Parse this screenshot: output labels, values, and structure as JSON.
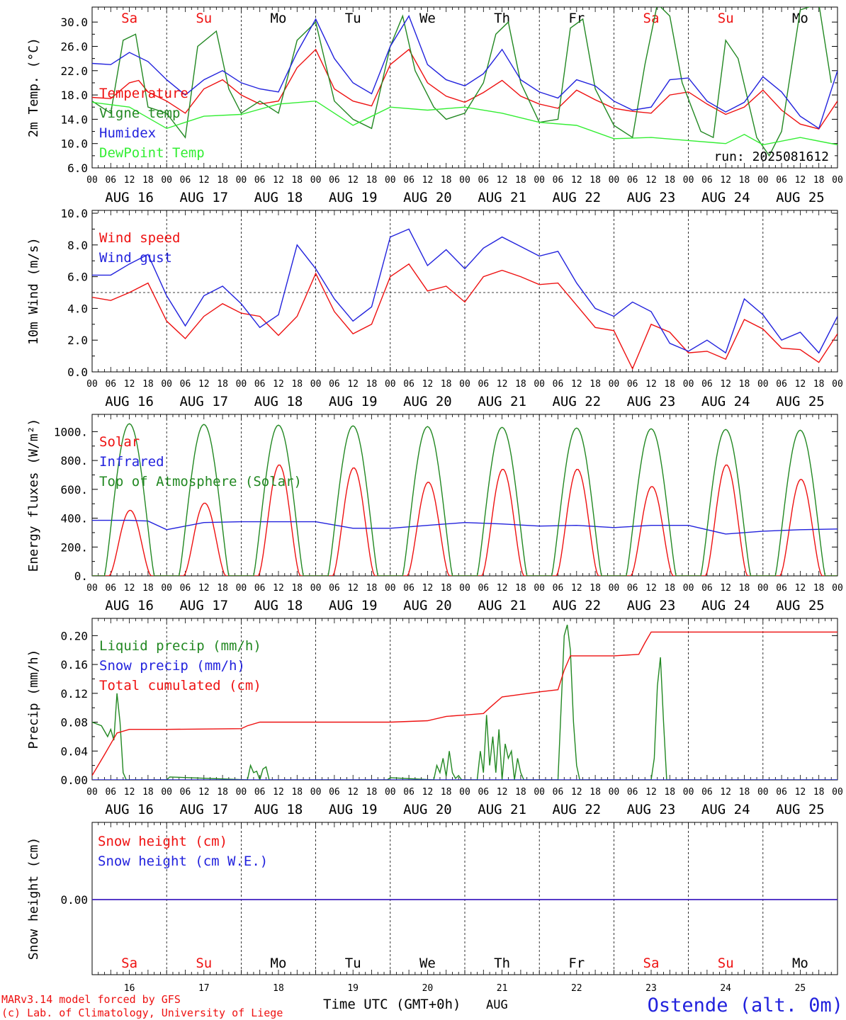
{
  "colors": {
    "red": "#ee1111",
    "green": "#228822",
    "blue": "#2222dd",
    "lightgreen": "#33ee33",
    "black": "#000000"
  },
  "x_axis": {
    "date_labels": [
      "AUG 16",
      "AUG 17",
      "AUG 18",
      "AUG 19",
      "AUG 20",
      "AUG 21",
      "AUG 22",
      "AUG 23",
      "AUG 24",
      "AUG 25"
    ],
    "hour_labels": [
      "00",
      "06",
      "12",
      "18"
    ],
    "bottom_day_numbers": [
      "16",
      "17",
      "18",
      "19",
      "20",
      "21",
      "22",
      "23",
      "24",
      "25"
    ],
    "xlabel": "Time UTC (GMT+0h)",
    "month": "AUG"
  },
  "weekdays": [
    {
      "label": "Sa",
      "weekend": true
    },
    {
      "label": "Su",
      "weekend": true
    },
    {
      "label": "Mo",
      "weekend": false
    },
    {
      "label": "Tu",
      "weekend": false
    },
    {
      "label": "We",
      "weekend": false
    },
    {
      "label": "Th",
      "weekend": false
    },
    {
      "label": "Fr",
      "weekend": false
    },
    {
      "label": "Sa",
      "weekend": true
    },
    {
      "label": "Su",
      "weekend": true
    },
    {
      "label": "Mo",
      "weekend": false
    }
  ],
  "footer": {
    "credit_line1": "MARv3.14 model forced by GFS",
    "credit_line2": "(c) Lab. of Climatology, University of Liege",
    "station": "Ostende (alt. 0m)"
  },
  "chart_data": [
    {
      "id": "temp",
      "type": "line",
      "ylabel": "2m Temp. (°C)",
      "ylim": [
        6.0,
        32.0
      ],
      "yticks": [
        "6.0",
        "10.0",
        "14.0",
        "18.0",
        "22.0",
        "26.0",
        "30.0"
      ],
      "annotation": "run: 2025081612",
      "show_weekdays": true,
      "x_unit": "hours since AUG 16 00 UTC",
      "series": [
        {
          "name": "Temperature",
          "color": "red",
          "x": [
            0,
            6,
            12,
            15,
            18,
            24,
            30,
            36,
            42,
            48,
            54,
            60,
            66,
            72,
            78,
            84,
            90,
            96,
            102,
            108,
            114,
            120,
            126,
            132,
            138,
            144,
            150,
            156,
            162,
            168,
            174,
            180,
            186,
            192,
            198,
            204,
            210,
            216,
            222,
            228,
            234,
            240
          ],
          "y": [
            17.6,
            17.4,
            20,
            20.4,
            18.5,
            17,
            15,
            19,
            20.5,
            18,
            16.5,
            17,
            22.5,
            25.5,
            19,
            17,
            16.2,
            23,
            25.5,
            20,
            17.8,
            16.8,
            18.4,
            20.4,
            17.8,
            16.5,
            15.8,
            18.8,
            17.2,
            15.8,
            15.3,
            15,
            18,
            18.5,
            16.5,
            14.8,
            16,
            18.8,
            15.5,
            13.2,
            12.4,
            17
          ]
        },
        {
          "name": "Vigne temp",
          "color": "green",
          "x": [
            0,
            6,
            10,
            14,
            18,
            24,
            30,
            34,
            40,
            44,
            48,
            54,
            60,
            66,
            72,
            78,
            84,
            90,
            96,
            100,
            104,
            110,
            114,
            120,
            126,
            130,
            134,
            138,
            144,
            150,
            154,
            158,
            162,
            168,
            174,
            178,
            182,
            186,
            190,
            196,
            200,
            204,
            208,
            214,
            218,
            222,
            228,
            234,
            238
          ],
          "y": [
            17,
            15,
            27,
            28,
            16,
            15,
            11,
            26,
            28.5,
            19,
            15,
            17,
            15,
            27,
            30,
            17,
            14,
            12.5,
            26,
            31,
            22,
            16,
            14,
            15,
            20,
            28,
            30,
            20,
            13.5,
            14,
            29,
            30.5,
            19,
            13,
            11,
            23,
            33,
            31,
            20,
            12,
            11,
            27,
            24,
            11,
            8,
            12,
            32,
            33,
            20
          ]
        },
        {
          "name": "Humidex",
          "color": "blue",
          "x": [
            0,
            6,
            12,
            18,
            24,
            30,
            36,
            42,
            48,
            54,
            60,
            66,
            72,
            78,
            84,
            90,
            96,
            102,
            108,
            114,
            120,
            126,
            132,
            138,
            144,
            150,
            156,
            162,
            168,
            174,
            180,
            186,
            192,
            198,
            204,
            210,
            216,
            222,
            228,
            234,
            240
          ],
          "y": [
            23.2,
            23,
            25,
            23.5,
            20.5,
            18,
            20.5,
            22,
            20,
            19,
            18.5,
            25,
            30.5,
            24,
            20,
            18.2,
            26,
            31,
            23,
            20.5,
            19.5,
            21.5,
            25.5,
            20.5,
            18.5,
            17.5,
            20.5,
            19.5,
            17,
            15.5,
            16,
            20.5,
            20.8,
            17,
            15.2,
            16.8,
            21,
            18.5,
            14.5,
            12.5,
            22
          ]
        },
        {
          "name": "DewPoint Temp",
          "color": "lightgreen",
          "x": [
            0,
            12,
            24,
            36,
            48,
            60,
            72,
            84,
            96,
            108,
            120,
            132,
            144,
            156,
            168,
            180,
            192,
            204,
            210,
            216,
            228,
            240
          ],
          "y": [
            16.8,
            16,
            12.5,
            14.5,
            14.8,
            16.5,
            17,
            13,
            16,
            15.5,
            16,
            15,
            13.5,
            13,
            10.8,
            11,
            10.5,
            10,
            11.5,
            9.8,
            11,
            9.8
          ]
        }
      ]
    },
    {
      "id": "wind",
      "type": "line",
      "ylabel": "10m Wind (m/s)",
      "ylim": [
        0.0,
        10.0
      ],
      "yticks": [
        "0.0",
        "2.0",
        "4.0",
        "6.0",
        "8.0",
        "10.0"
      ],
      "reference_line": 5.0,
      "x_unit": "hours since AUG 16 00 UTC",
      "series": [
        {
          "name": "Wind speed",
          "color": "red",
          "x": [
            0,
            6,
            12,
            18,
            24,
            30,
            36,
            42,
            48,
            54,
            60,
            66,
            72,
            78,
            84,
            90,
            96,
            102,
            108,
            114,
            120,
            126,
            132,
            138,
            144,
            150,
            156,
            162,
            168,
            174,
            180,
            186,
            192,
            198,
            204,
            210,
            216,
            222,
            228,
            234,
            240
          ],
          "y": [
            4.7,
            4.5,
            5,
            5.6,
            3.2,
            2.1,
            3.5,
            4.3,
            3.7,
            3.5,
            2.3,
            3.5,
            6.2,
            3.8,
            2.4,
            3,
            6,
            6.8,
            5.1,
            5.4,
            4.4,
            6,
            6.4,
            6,
            5.5,
            5.6,
            4.2,
            2.8,
            2.6,
            0.2,
            3,
            2.5,
            1.2,
            1.3,
            0.8,
            3.3,
            2.7,
            1.5,
            1.4,
            0.6,
            2.4
          ]
        },
        {
          "name": "Wind gust",
          "color": "blue",
          "x": [
            0,
            6,
            12,
            18,
            24,
            30,
            36,
            42,
            48,
            54,
            60,
            66,
            72,
            78,
            84,
            90,
            96,
            102,
            108,
            114,
            120,
            126,
            132,
            138,
            144,
            150,
            156,
            162,
            168,
            174,
            180,
            186,
            192,
            198,
            204,
            210,
            216,
            222,
            228,
            234,
            240
          ],
          "y": [
            6.1,
            6.1,
            6.8,
            7.4,
            4.8,
            2.9,
            4.8,
            5.4,
            4.3,
            2.8,
            3.6,
            8,
            6.5,
            4.6,
            3.2,
            4.1,
            8.5,
            9,
            6.7,
            7.7,
            6.5,
            7.8,
            8.5,
            7.9,
            7.3,
            7.6,
            5.6,
            4,
            3.5,
            4.4,
            3.8,
            1.8,
            1.3,
            2,
            1.2,
            4.6,
            3.6,
            2,
            2.5,
            1.2,
            3.5
          ]
        }
      ]
    },
    {
      "id": "energy",
      "type": "line",
      "ylabel": "Energy fluxes (W/m²)",
      "ylim": [
        0,
        1100
      ],
      "yticks": [
        "0.",
        "200.",
        "400.",
        "600.",
        "800.",
        "1000."
      ],
      "x_unit": "hours since AUG 16 00 UTC",
      "series": [
        {
          "name": "Solar",
          "color": "red",
          "daily_peaks": [
            455,
            505,
            770,
            750,
            650,
            740,
            740,
            620,
            770,
            670
          ]
        },
        {
          "name": "Infrared",
          "color": "blue",
          "x": [
            0,
            12,
            18,
            24,
            36,
            48,
            60,
            72,
            84,
            96,
            108,
            120,
            132,
            144,
            156,
            168,
            180,
            192,
            204,
            216,
            228,
            240
          ],
          "y": [
            385,
            385,
            380,
            320,
            370,
            375,
            375,
            375,
            330,
            330,
            350,
            370,
            360,
            345,
            350,
            335,
            350,
            350,
            290,
            310,
            320,
            325
          ]
        },
        {
          "name": "Top of Atmosphere (Solar)",
          "color": "green",
          "daily_peaks": [
            1055,
            1050,
            1045,
            1040,
            1035,
            1030,
            1025,
            1020,
            1015,
            1010
          ]
        }
      ]
    },
    {
      "id": "precip",
      "type": "line",
      "ylabel": "Precip (mm/h)",
      "ylim": [
        0.0,
        0.22
      ],
      "yticks": [
        "0.00",
        "0.04",
        "0.08",
        "0.12",
        "0.16",
        "0.20"
      ],
      "x_unit": "hours since AUG 16 00 UTC",
      "series": [
        {
          "name": "Liquid precip (mm/h)",
          "color": "green",
          "x": [
            0,
            3,
            5,
            6,
            7,
            8,
            9,
            10,
            11,
            12,
            24,
            25,
            50,
            51,
            52,
            53,
            54,
            55,
            56,
            57,
            58,
            95,
            96,
            110,
            111,
            112,
            113,
            114,
            115,
            116,
            117,
            118,
            119,
            124,
            125,
            126,
            127,
            128,
            129,
            130,
            131,
            132,
            133,
            134,
            135,
            136,
            137,
            138,
            139,
            140,
            150,
            151,
            152,
            153,
            154,
            155,
            156,
            157,
            158,
            159,
            180,
            181,
            182,
            183,
            184,
            185,
            186,
            240
          ],
          "y": [
            0.08,
            0.075,
            0.06,
            0.07,
            0.055,
            0.12,
            0.08,
            0.01,
            0,
            0,
            0,
            0.004,
            0,
            0.02,
            0.01,
            0.012,
            0,
            0.015,
            0.018,
            0,
            0,
            0,
            0.003,
            0,
            0.02,
            0.01,
            0.03,
            0.005,
            0.04,
            0.01,
            0.002,
            0.006,
            0,
            0,
            0.04,
            0.01,
            0.09,
            0.02,
            0.06,
            0.01,
            0.07,
            0,
            0.05,
            0.03,
            0.04,
            0,
            0.03,
            0.01,
            0,
            0,
            0,
            0.1,
            0.2,
            0.215,
            0.18,
            0.08,
            0.02,
            0,
            0,
            0,
            0,
            0.03,
            0.13,
            0.17,
            0.08,
            0,
            0,
            0
          ]
        },
        {
          "name": "Snow precip (mm/h)",
          "color": "blue",
          "x": [
            0,
            240
          ],
          "y": [
            0,
            0
          ]
        },
        {
          "name": "Total cumulated (cm)",
          "color": "red",
          "x": [
            0,
            4,
            8,
            12,
            24,
            48,
            50,
            54,
            60,
            96,
            108,
            114,
            120,
            126,
            128,
            132,
            144,
            150,
            152,
            154,
            168,
            176,
            178,
            180,
            240
          ],
          "y": [
            0.006,
            0.035,
            0.065,
            0.07,
            0.07,
            0.071,
            0.075,
            0.08,
            0.08,
            0.08,
            0.082,
            0.088,
            0.09,
            0.092,
            0.1,
            0.115,
            0.122,
            0.125,
            0.152,
            0.172,
            0.172,
            0.174,
            0.19,
            0.205,
            0.205
          ]
        }
      ]
    },
    {
      "id": "snow",
      "type": "line",
      "ylabel": "Snow height (cm)",
      "yticks": [
        "0.00"
      ],
      "x_unit": "hours since AUG 16 00 UTC",
      "series": [
        {
          "name": "Snow height (cm)",
          "color": "red",
          "x": [
            0,
            240
          ],
          "y": [
            0,
            0
          ]
        },
        {
          "name": "Snow height (cm W.E.)",
          "color": "blue",
          "x": [
            0,
            240
          ],
          "y": [
            0,
            0
          ]
        }
      ]
    }
  ]
}
